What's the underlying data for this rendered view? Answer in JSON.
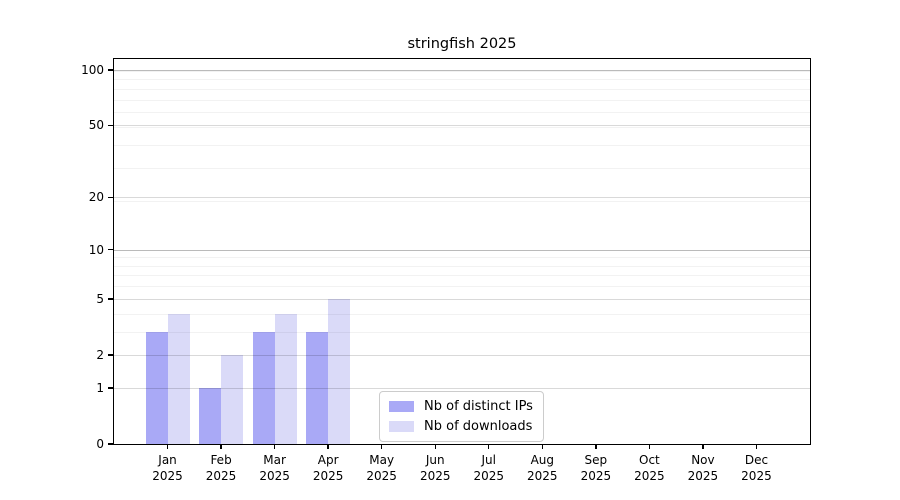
{
  "chart_data": {
    "type": "bar",
    "title": "stringfish 2025",
    "year": "2025",
    "months": [
      "Jan",
      "Feb",
      "Mar",
      "Apr",
      "May",
      "Jun",
      "Jul",
      "Aug",
      "Sep",
      "Oct",
      "Nov",
      "Dec"
    ],
    "series": [
      {
        "name": "Nb of distinct IPs",
        "color": "#a9a9f6",
        "values": [
          3,
          1,
          3,
          3,
          0,
          0,
          0,
          0,
          0,
          0,
          0,
          0
        ]
      },
      {
        "name": "Nb of downloads",
        "color": "#dadaf8",
        "values": [
          4,
          2,
          4,
          5,
          0,
          0,
          0,
          0,
          0,
          0,
          0,
          0
        ]
      }
    ],
    "y_axis": {
      "scale": "log10(1+v)",
      "ticks": [
        0,
        1,
        2,
        5,
        10,
        20,
        50,
        100
      ],
      "minor_gridlines": [
        3,
        4,
        6,
        7,
        8,
        9,
        19,
        29,
        39,
        49,
        59,
        69,
        79,
        89,
        99
      ],
      "max": 113
    },
    "x_axis": {
      "tick_label_format": "Month over Year, two lines"
    },
    "legend": {
      "position": "lower center"
    },
    "colors": {
      "background": "#ffffff",
      "text": "#000000",
      "spine": "#000000",
      "grid_minor": "rgba(0,0,0,0.05)",
      "grid_major": "rgba(0,0,0,0.15)",
      "grid_decade": "rgba(0,0,0,0.27)",
      "legend_border": "#cccccc"
    }
  }
}
